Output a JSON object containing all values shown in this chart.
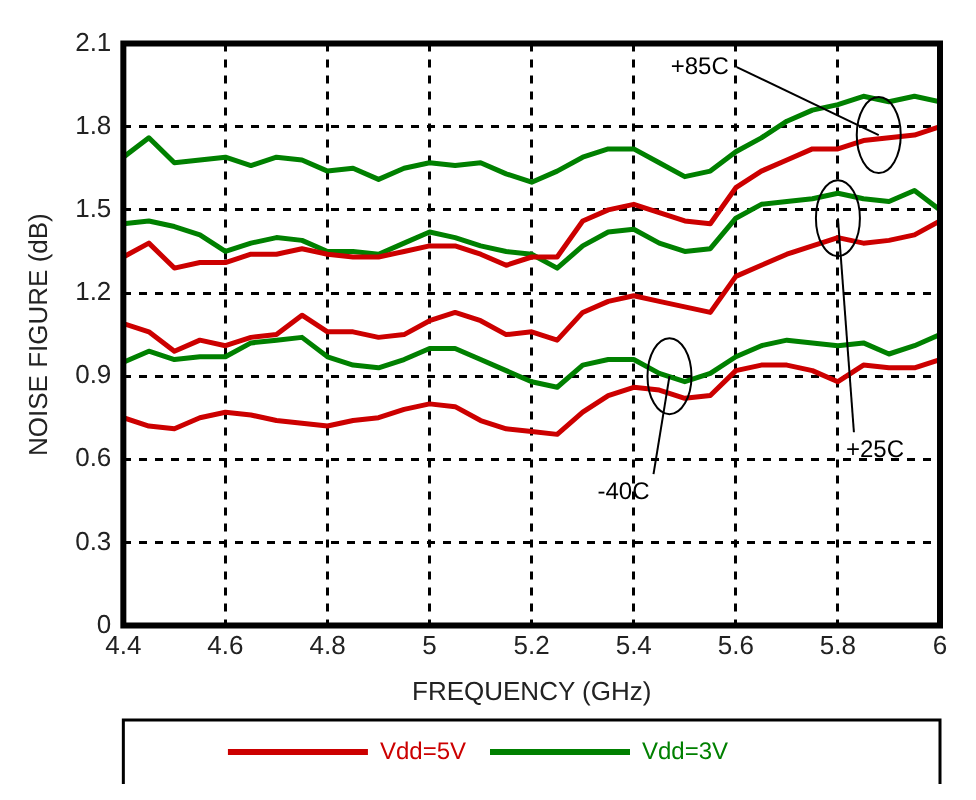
{
  "chart_data": {
    "type": "line",
    "xlabel": "FREQUENCY (GHz)",
    "ylabel": "NOISE FIGURE (dB)",
    "x": [
      4.4,
      4.45,
      4.5,
      4.55,
      4.6,
      4.65,
      4.7,
      4.75,
      4.8,
      4.85,
      4.9,
      4.95,
      5.0,
      5.05,
      5.1,
      5.15,
      5.2,
      5.25,
      5.3,
      5.35,
      5.4,
      5.45,
      5.5,
      5.55,
      5.6,
      5.65,
      5.7,
      5.75,
      5.8,
      5.85,
      5.9,
      5.95,
      6.0
    ],
    "series": [
      {
        "color": "#008000",
        "values": [
          1.69,
          1.76,
          1.67,
          1.68,
          1.69,
          1.66,
          1.69,
          1.68,
          1.64,
          1.65,
          1.61,
          1.65,
          1.67,
          1.66,
          1.67,
          1.63,
          1.6,
          1.64,
          1.69,
          1.72,
          1.72,
          1.67,
          1.62,
          1.64,
          1.71,
          1.76,
          1.82,
          1.86,
          1.88,
          1.91,
          1.89,
          1.91,
          1.89
        ]
      },
      {
        "name": "Vdd=5V",
        "color": "#cc0000",
        "values": [
          1.33,
          1.38,
          1.29,
          1.31,
          1.31,
          1.34,
          1.34,
          1.36,
          1.34,
          1.33,
          1.33,
          1.35,
          1.37,
          1.37,
          1.34,
          1.3,
          1.33,
          1.33,
          1.46,
          1.5,
          1.52,
          1.49,
          1.46,
          1.45,
          1.58,
          1.64,
          1.68,
          1.72,
          1.72,
          1.75,
          1.76,
          1.77,
          1.8
        ]
      },
      {
        "name": "Vdd=3V",
        "color": "#008000",
        "values": [
          1.45,
          1.46,
          1.44,
          1.41,
          1.35,
          1.38,
          1.4,
          1.39,
          1.35,
          1.35,
          1.34,
          1.38,
          1.42,
          1.4,
          1.37,
          1.35,
          1.34,
          1.29,
          1.37,
          1.42,
          1.43,
          1.38,
          1.35,
          1.36,
          1.47,
          1.52,
          1.53,
          1.54,
          1.56,
          1.54,
          1.53,
          1.57,
          1.5
        ]
      },
      {
        "color": "#cc0000",
        "values": [
          1.09,
          1.06,
          0.99,
          1.03,
          1.01,
          1.04,
          1.05,
          1.12,
          1.06,
          1.06,
          1.04,
          1.05,
          1.1,
          1.13,
          1.1,
          1.05,
          1.06,
          1.03,
          1.13,
          1.17,
          1.19,
          1.17,
          1.15,
          1.13,
          1.26,
          1.3,
          1.34,
          1.37,
          1.4,
          1.38,
          1.39,
          1.41,
          1.46
        ]
      },
      {
        "color": "#008000",
        "values": [
          0.95,
          0.99,
          0.96,
          0.97,
          0.97,
          1.02,
          1.03,
          1.04,
          0.97,
          0.94,
          0.93,
          0.96,
          1.0,
          1.0,
          0.96,
          0.92,
          0.88,
          0.86,
          0.94,
          0.96,
          0.96,
          0.91,
          0.88,
          0.91,
          0.97,
          1.01,
          1.03,
          1.02,
          1.01,
          1.02,
          0.98,
          1.01,
          1.05
        ]
      },
      {
        "color": "#cc0000",
        "values": [
          0.75,
          0.72,
          0.71,
          0.75,
          0.77,
          0.76,
          0.74,
          0.73,
          0.72,
          0.74,
          0.75,
          0.78,
          0.8,
          0.79,
          0.74,
          0.71,
          0.7,
          0.69,
          0.77,
          0.83,
          0.86,
          0.85,
          0.82,
          0.83,
          0.92,
          0.94,
          0.94,
          0.92,
          0.88,
          0.94,
          0.93,
          0.93,
          0.96
        ]
      }
    ],
    "xlim": [
      4.4,
      6
    ],
    "xticks": [
      4.4,
      4.6,
      4.8,
      5,
      5.2,
      5.4,
      5.6,
      5.8,
      6
    ],
    "ylim": [
      0,
      2.1
    ],
    "yticks": [
      0,
      0.3,
      0.6,
      0.9,
      1.2,
      1.5,
      1.8,
      2.1
    ],
    "grid": true,
    "legend": "bottom",
    "marker": "none",
    "line_style": "solid",
    "annotations": [
      {
        "text": "+85C",
        "x": 5.88,
        "y": 1.77
      },
      {
        "text": "+25C",
        "x": 5.8,
        "y": 1.47
      },
      {
        "text": "-40C",
        "x": 5.47,
        "y": 0.9
      }
    ]
  }
}
